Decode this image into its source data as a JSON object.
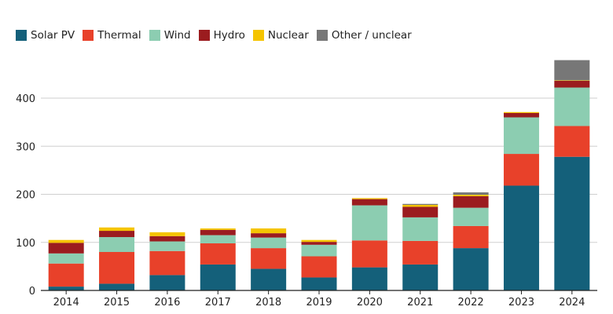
{
  "chart_data": {
    "type": "bar",
    "stacked": true,
    "title": "",
    "xlabel": "",
    "ylabel": "",
    "categories": [
      "2014",
      "2015",
      "2016",
      "2017",
      "2018",
      "2019",
      "2020",
      "2021",
      "2022",
      "2023",
      "2024"
    ],
    "series": [
      {
        "name": "Solar PV",
        "color": "#14607a",
        "values": [
          8,
          14,
          32,
          54,
          45,
          27,
          48,
          54,
          88,
          218,
          278
        ]
      },
      {
        "name": "Thermal",
        "color": "#e8412a",
        "values": [
          48,
          66,
          50,
          44,
          43,
          44,
          56,
          49,
          46,
          66,
          64
        ]
      },
      {
        "name": "Wind",
        "color": "#8ccdb1",
        "values": [
          21,
          31,
          20,
          17,
          22,
          24,
          73,
          49,
          38,
          76,
          80
        ]
      },
      {
        "name": "Hydro",
        "color": "#9b1c1f",
        "values": [
          22,
          13,
          11,
          11,
          9,
          6,
          13,
          22,
          24,
          9,
          14
        ]
      },
      {
        "name": "Nuclear",
        "color": "#f5c400",
        "values": [
          6,
          7,
          8,
          3,
          10,
          4,
          2,
          4,
          3,
          2,
          1
        ]
      },
      {
        "name": "Other / unclear",
        "color": "#777777",
        "values": [
          0,
          0,
          0,
          0,
          0,
          0,
          0,
          2,
          5,
          0,
          42
        ]
      }
    ],
    "yticks": [
      0,
      100,
      200,
      300,
      400
    ],
    "ylim": [
      0,
      480
    ],
    "grid": true,
    "legend_position": "top-left"
  }
}
